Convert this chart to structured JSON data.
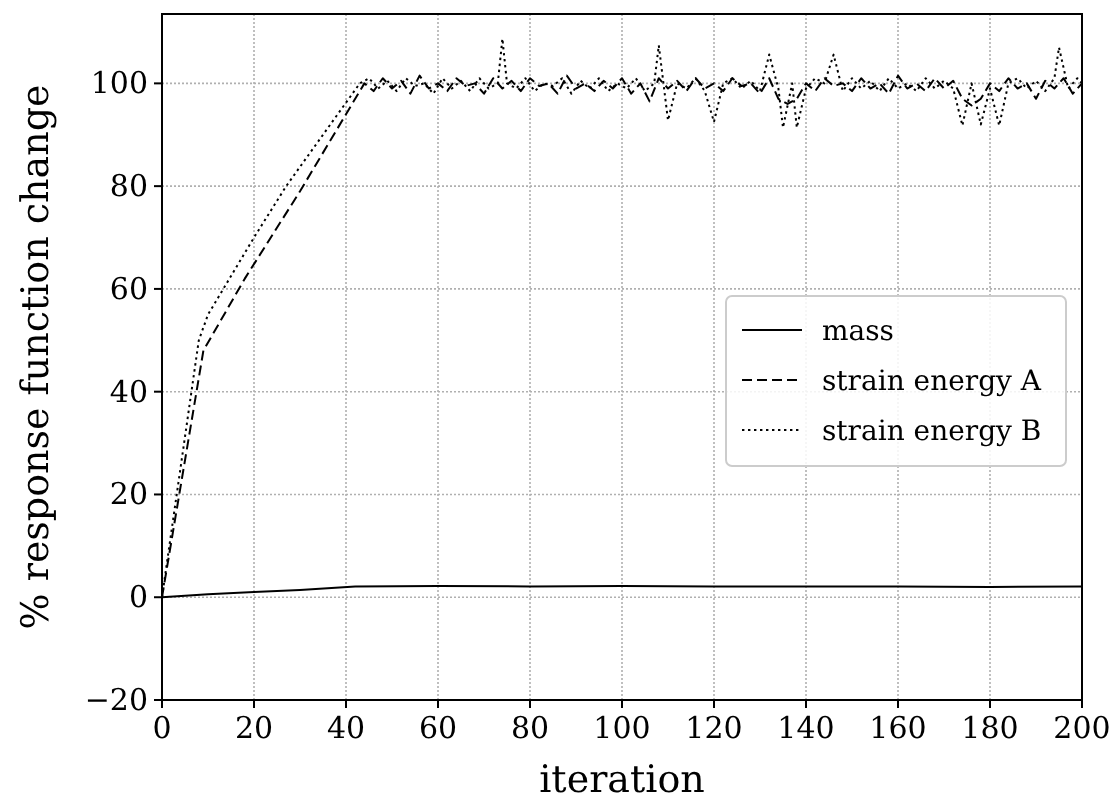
{
  "chart_data": {
    "type": "line",
    "xlabel": "iteration",
    "ylabel": "% response function change",
    "xlim": [
      0,
      200
    ],
    "ylim": [
      -20,
      113.5
    ],
    "xticks": [
      0,
      20,
      40,
      60,
      80,
      100,
      120,
      140,
      160,
      180,
      200
    ],
    "yticks": [
      -20,
      0,
      20,
      40,
      60,
      80,
      100
    ],
    "grid": true,
    "legend": "right",
    "series": [
      {
        "name": "mass",
        "color": "#000000",
        "line_style": "solid",
        "x": [
          0,
          10,
          20,
          30,
          42,
          60,
          80,
          100,
          120,
          140,
          160,
          180,
          200
        ],
        "values": [
          0,
          0.6,
          1,
          1.4,
          2.1,
          2.2,
          2.1,
          2.2,
          2.1,
          2.1,
          2.1,
          2,
          2.1
        ]
      },
      {
        "name": "strain energy A",
        "color": "#000000",
        "line_style": "dashed",
        "x": [
          0,
          9,
          18,
          30,
          44,
          46,
          48,
          50,
          52,
          54,
          56,
          58,
          60,
          62,
          64,
          66,
          68,
          70,
          72,
          74,
          76,
          78,
          80,
          82,
          84,
          86,
          88,
          90,
          92,
          94,
          96,
          98,
          100,
          102,
          104,
          106,
          108,
          110,
          112,
          114,
          116,
          118,
          120,
          122,
          124,
          126,
          128,
          130,
          132,
          134,
          136,
          138,
          140,
          142,
          144,
          146,
          148,
          150,
          152,
          154,
          156,
          158,
          160,
          162,
          164,
          166,
          168,
          170,
          172,
          174,
          176,
          178,
          180,
          182,
          184,
          186,
          188,
          190,
          192,
          194,
          196,
          198,
          200
        ],
        "values": [
          0,
          48,
          62,
          79,
          100,
          98.5,
          101,
          99,
          100.5,
          98,
          101.5,
          99,
          100,
          98.5,
          101,
          99.5,
          100,
          98,
          101,
          99,
          100.5,
          98.5,
          101,
          99.5,
          100,
          98,
          101.5,
          99,
          100,
          98.5,
          100.5,
          99,
          101,
          98,
          100,
          96.5,
          101,
          99,
          100.5,
          98.5,
          101,
          99,
          100,
          98.5,
          101,
          99.5,
          100,
          98,
          101,
          97,
          96,
          97,
          100,
          98.5,
          101,
          99.5,
          100,
          98.5,
          101,
          99,
          100,
          98,
          101.5,
          99,
          100,
          98.5,
          101,
          99,
          100.5,
          97,
          95.7,
          97,
          100,
          98.5,
          101,
          99,
          100,
          97,
          100.5,
          99,
          101,
          98,
          100
        ]
      },
      {
        "name": "strain energy B",
        "color": "#000000",
        "line_style": "dotted",
        "x": [
          0,
          8,
          10,
          20,
          27,
          43,
          45,
          47,
          49,
          51,
          53,
          55,
          57,
          59,
          61,
          63,
          65,
          67,
          69,
          71,
          73,
          74,
          75,
          77,
          79,
          81,
          83,
          85,
          87,
          89,
          91,
          93,
          95,
          97,
          99,
          101,
          103,
          105,
          107,
          108,
          110,
          112,
          114,
          116,
          118,
          120,
          122,
          124,
          126,
          128,
          130,
          132,
          134,
          135,
          137,
          138,
          140,
          142,
          144,
          146,
          148,
          150,
          152,
          154,
          156,
          158,
          160,
          162,
          164,
          166,
          168,
          170,
          172,
          174,
          176,
          178,
          180,
          182,
          184,
          186,
          188,
          190,
          192,
          194,
          195,
          197,
          199,
          200
        ],
        "values": [
          0,
          50,
          55,
          70,
          80,
          100,
          101,
          99,
          100.5,
          98.5,
          101,
          99.5,
          100,
          98,
          101,
          99,
          100.5,
          98.5,
          101,
          99,
          100,
          108.7,
          100,
          99,
          101,
          98.5,
          100,
          99.5,
          101,
          98,
          100.5,
          99,
          101,
          98.5,
          100,
          99,
          101,
          98.5,
          100,
          107.4,
          92.8,
          100,
          99,
          101,
          98.5,
          92.5,
          100,
          101,
          99,
          100.5,
          98.5,
          105.6,
          99,
          91.4,
          100,
          91.4,
          99,
          101,
          100,
          105.6,
          98.5,
          101,
          99,
          100.5,
          98.5,
          101,
          99,
          100,
          98.5,
          101,
          99,
          100.5,
          99,
          91.8,
          100,
          92,
          99,
          91.8,
          100,
          101,
          99,
          100.5,
          98.5,
          101,
          107,
          99,
          101,
          100
        ]
      }
    ]
  }
}
